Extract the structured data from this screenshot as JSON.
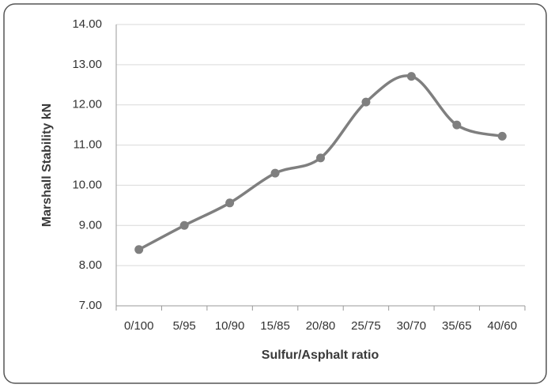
{
  "chart_data": {
    "type": "line",
    "x_label": "Sulfur/Asphalt ratio",
    "y_label": "Marshall Stability kN",
    "categories": [
      "0/100",
      "5/95",
      "10/90",
      "15/85",
      "20/80",
      "25/75",
      "30/70",
      "35/65",
      "40/60"
    ],
    "series": [
      {
        "name": "Marshall Stability",
        "color": "#7f7f7f",
        "values": [
          8.4,
          9.0,
          9.56,
          10.3,
          10.68,
          12.07,
          12.71,
          11.5,
          11.22
        ]
      }
    ],
    "ylim": [
      7,
      14
    ],
    "yticks": [
      {
        "value": 7,
        "label": "7.00"
      },
      {
        "value": 8,
        "label": "8.00"
      },
      {
        "value": 9,
        "label": "9.00"
      },
      {
        "value": 10,
        "label": "10.00"
      },
      {
        "value": 11,
        "label": "11.00"
      },
      {
        "value": 12,
        "label": "12.00"
      },
      {
        "value": 13,
        "label": "13.00"
      },
      {
        "value": 14,
        "label": "14.00"
      }
    ],
    "grid": true,
    "smooth": true
  }
}
